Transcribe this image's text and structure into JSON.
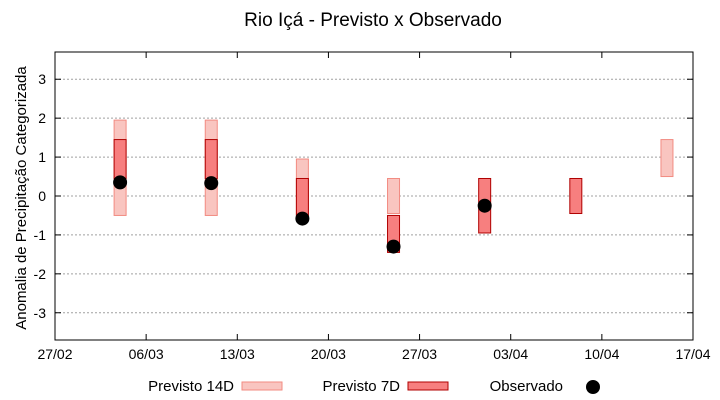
{
  "chart_data": {
    "type": "range-bar",
    "title": "Rio Içá - Previsto x Observado",
    "xlabel": "",
    "ylabel": "Anomalia de Precipitação Categorizada",
    "ylim": [
      -3.7,
      3.7
    ],
    "yticks": [
      -3,
      -2,
      -1,
      0,
      1,
      2,
      3
    ],
    "xlim": [
      "2025-02-27",
      "2025-04-17"
    ],
    "xticks": [
      "27/02",
      "06/03",
      "13/03",
      "20/03",
      "27/03",
      "03/04",
      "10/04",
      "17/04"
    ],
    "grid": true,
    "legend_position": "bottom",
    "legend": {
      "p14": "Previsto 14D",
      "p7": "Previsto 7D",
      "obs": "Observado"
    },
    "series": [
      {
        "key": "p14",
        "name": "Previsto 14D",
        "kind": "range",
        "fill": "#f9c5c0",
        "stroke": "#f28b82",
        "points": [
          {
            "x": "2025-03-04",
            "low": -0.5,
            "high": 1.95
          },
          {
            "x": "2025-03-11",
            "low": -0.5,
            "high": 1.95
          },
          {
            "x": "2025-03-18",
            "low": -0.5,
            "high": 0.95
          },
          {
            "x": "2025-03-25",
            "low": -0.45,
            "high": 0.45
          },
          {
            "x": "2025-04-15",
            "low": 0.5,
            "high": 1.45
          }
        ]
      },
      {
        "key": "p7",
        "name": "Previsto 7D",
        "kind": "range",
        "fill": "#f77f7f",
        "stroke": "#b00000",
        "points": [
          {
            "x": "2025-03-04",
            "low": 0.45,
            "high": 1.45
          },
          {
            "x": "2025-03-11",
            "low": 0.45,
            "high": 1.45
          },
          {
            "x": "2025-03-18",
            "low": -0.5,
            "high": 0.45
          },
          {
            "x": "2025-03-25",
            "low": -1.45,
            "high": -0.5
          },
          {
            "x": "2025-04-01",
            "low": -0.95,
            "high": 0.45
          },
          {
            "x": "2025-04-08",
            "low": -0.45,
            "high": 0.45
          }
        ]
      },
      {
        "key": "obs",
        "name": "Observado",
        "kind": "point",
        "color": "#000000",
        "points": [
          {
            "x": "2025-03-04",
            "y": 0.35
          },
          {
            "x": "2025-03-11",
            "y": 0.33
          },
          {
            "x": "2025-03-18",
            "y": -0.58
          },
          {
            "x": "2025-03-25",
            "y": -1.3
          },
          {
            "x": "2025-04-01",
            "y": -0.25
          }
        ]
      }
    ]
  }
}
